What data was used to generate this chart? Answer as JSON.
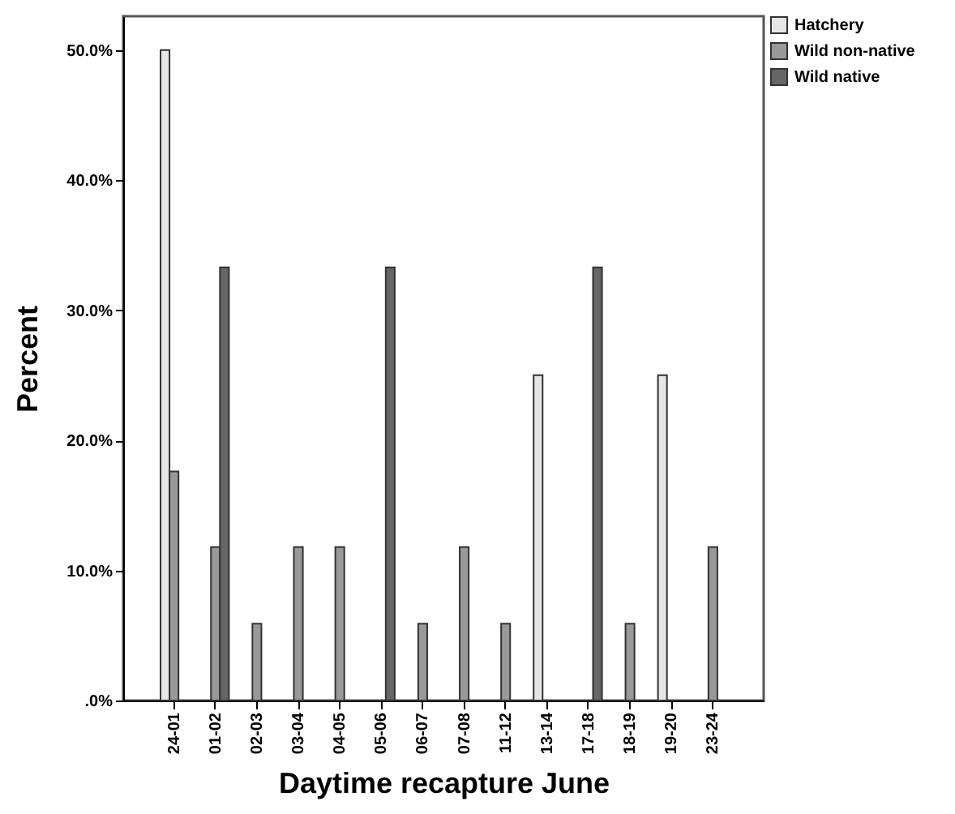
{
  "chart_data": {
    "type": "bar",
    "xlabel": "Daytime recapture June",
    "ylabel": "Percent",
    "categories": [
      "24-01",
      "01-02",
      "02-03",
      "03-04",
      "04-05",
      "05-06",
      "06-07",
      "07-08",
      "11-12",
      "13-14",
      "17-18",
      "18-19",
      "19-20",
      "23-24"
    ],
    "series": [
      {
        "name": "Hatchery",
        "color": "#e6e6e6",
        "values": [
          50,
          0,
          0,
          0,
          0,
          0,
          0,
          0,
          0,
          25,
          0,
          0,
          25,
          0
        ]
      },
      {
        "name": "Wild non-native",
        "color": "#999999",
        "values": [
          17.6,
          11.8,
          5.9,
          11.8,
          11.8,
          0,
          5.9,
          11.8,
          5.9,
          0,
          0,
          5.9,
          0,
          11.8
        ]
      },
      {
        "name": "Wild native",
        "color": "#666666",
        "values": [
          0,
          33.3,
          0,
          0,
          0,
          33.3,
          0,
          0,
          0,
          0,
          33.3,
          0,
          0,
          0
        ]
      }
    ],
    "ylim": [
      0,
      52.6
    ],
    "yticks": [
      {
        "value": 0,
        "label": ".0%"
      },
      {
        "value": 10,
        "label": "10.0%"
      },
      {
        "value": 20,
        "label": "20.0%"
      },
      {
        "value": 30,
        "label": "30.0%"
      },
      {
        "value": 40,
        "label": "40.0%"
      },
      {
        "value": 50,
        "label": "50.0%"
      }
    ],
    "legend": "top right",
    "grid": false
  }
}
